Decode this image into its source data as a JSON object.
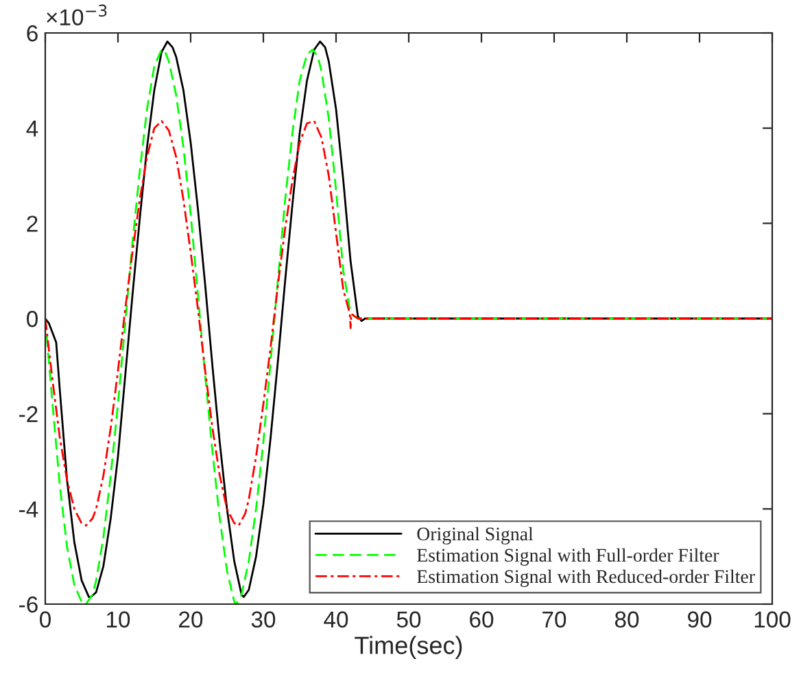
{
  "chart_data": {
    "type": "line",
    "xlabel": "Time(sec)",
    "annotations": [
      "×10$^{−3}$"
    ],
    "xlim": [
      0,
      100
    ],
    "xticks": [
      0,
      10,
      20,
      30,
      40,
      50,
      60,
      70,
      80,
      90,
      100
    ],
    "ylim": [
      -6,
      6
    ],
    "yticks": [
      -6,
      -4,
      -2,
      0,
      2,
      4,
      6
    ],
    "legend": "bottom right",
    "series": [
      {
        "name": "Original Signal",
        "color": "#000000",
        "line_style": "solid",
        "x": [
          0,
          0.5,
          1,
          1.5,
          2,
          3,
          4,
          5,
          6,
          6.3,
          7,
          8,
          9,
          10,
          11,
          12,
          13,
          14,
          15,
          16,
          16.8,
          17.5,
          18,
          19,
          20,
          21,
          22,
          23,
          24,
          25,
          26,
          27,
          27.3,
          28,
          29,
          30,
          31,
          32,
          33,
          34,
          35,
          36,
          37,
          37.8,
          38.5,
          39,
          40,
          41,
          42,
          43,
          43.5,
          44,
          100
        ],
        "values": [
          0,
          -0.1,
          -0.3,
          -0.5,
          -1.5,
          -3.4,
          -4.7,
          -5.5,
          -5.85,
          -5.85,
          -5.75,
          -5.2,
          -4.2,
          -2.9,
          -1.2,
          0.5,
          2.1,
          3.6,
          4.8,
          5.6,
          5.82,
          5.7,
          5.5,
          4.8,
          3.7,
          2.3,
          0.7,
          -1.0,
          -2.6,
          -4.0,
          -5.1,
          -5.8,
          -5.85,
          -5.7,
          -5.0,
          -3.9,
          -2.5,
          -0.9,
          0.8,
          2.4,
          3.9,
          5.0,
          5.65,
          5.82,
          5.7,
          5.4,
          4.4,
          2.9,
          1.2,
          0.05,
          -0.05,
          0,
          0
        ]
      },
      {
        "name": "Estimation Signal with Full-order Filter",
        "color": "#00ff00",
        "line_style": "dashed",
        "x": [
          0,
          1,
          2,
          3,
          4,
          5,
          5.6,
          6.5,
          7,
          8,
          9,
          10,
          11,
          12,
          13,
          14,
          15,
          16,
          16.5,
          17,
          18,
          19,
          20,
          21,
          22,
          23,
          24,
          25,
          26,
          26.3,
          27,
          28,
          29,
          30,
          31,
          32,
          33,
          34,
          35,
          36,
          36.8,
          37.5,
          38,
          39,
          40,
          41,
          42,
          43,
          100
        ],
        "values": [
          0,
          -1.8,
          -3.5,
          -4.8,
          -5.6,
          -5.95,
          -6.0,
          -5.8,
          -5.5,
          -4.6,
          -3.3,
          -1.8,
          -0.1,
          1.6,
          3.1,
          4.4,
          5.3,
          5.65,
          5.6,
          5.4,
          4.7,
          3.6,
          2.2,
          0.5,
          -1.2,
          -2.8,
          -4.2,
          -5.3,
          -5.95,
          -6.0,
          -5.8,
          -5.1,
          -4.0,
          -2.6,
          -0.9,
          0.8,
          2.5,
          3.9,
          5.0,
          5.55,
          5.65,
          5.5,
          5.2,
          4.2,
          2.7,
          1.0,
          0.1,
          0,
          0
        ]
      },
      {
        "name": "Estimation Signal with Reduced-order Filter",
        "color": "#ff0000",
        "line_style": "dashdot",
        "x": [
          0,
          1,
          2,
          3,
          4,
          5,
          5.6,
          6.5,
          7,
          8,
          9,
          10,
          11,
          12,
          13,
          14,
          15,
          16,
          17,
          18,
          19,
          20,
          21,
          22,
          23,
          24,
          25,
          26,
          26.6,
          27.5,
          28,
          29,
          30,
          31,
          32,
          33,
          34,
          35,
          36,
          37,
          38,
          39,
          40,
          41,
          41.9,
          42,
          42.1,
          43,
          100
        ],
        "values": [
          0,
          -1.3,
          -2.5,
          -3.4,
          -4.0,
          -4.3,
          -4.35,
          -4.2,
          -4.0,
          -3.3,
          -2.3,
          -1.1,
          0.2,
          1.4,
          2.5,
          3.4,
          4.0,
          4.15,
          3.95,
          3.4,
          2.5,
          1.4,
          0.2,
          -1.1,
          -2.3,
          -3.3,
          -4.0,
          -4.3,
          -4.35,
          -4.1,
          -3.8,
          -2.9,
          -1.8,
          -0.6,
          0.7,
          1.9,
          2.9,
          3.7,
          4.1,
          4.15,
          3.8,
          3.0,
          1.8,
          0.6,
          0.1,
          -0.2,
          0.1,
          0,
          0
        ]
      }
    ]
  }
}
